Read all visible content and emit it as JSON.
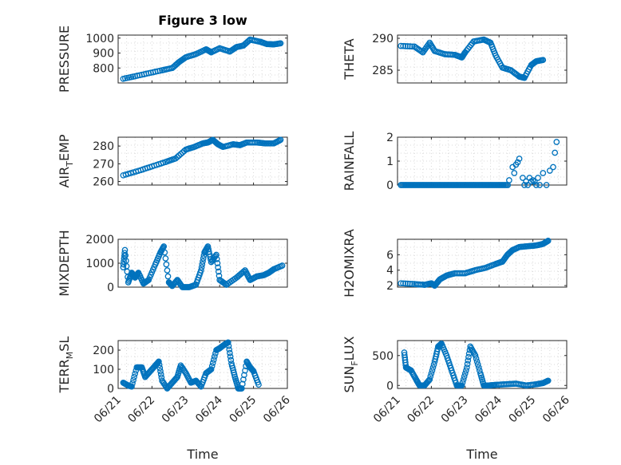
{
  "figure": {
    "title": "Figure 3 low",
    "xlabel": "Time",
    "marker_color": "#0072BD"
  },
  "chart_data": [
    {
      "type": "scatter",
      "name": "pressure-plot",
      "title": "Figure 3 low",
      "ylabel": "PRESSURE",
      "xlabel": "",
      "xlim": [
        0,
        5
      ],
      "xticks": [],
      "ylim": [
        700,
        1020
      ],
      "yticks": [
        800,
        900,
        1000
      ],
      "grid": true,
      "anchors": [
        [
          0.15,
          728
        ],
        [
          0.5,
          745
        ],
        [
          0.9,
          765
        ],
        [
          1.3,
          785
        ],
        [
          1.6,
          800
        ],
        [
          1.8,
          840
        ],
        [
          2.0,
          872
        ],
        [
          2.3,
          893
        ],
        [
          2.6,
          925
        ],
        [
          2.75,
          905
        ],
        [
          3.0,
          932
        ],
        [
          3.3,
          910
        ],
        [
          3.5,
          940
        ],
        [
          3.7,
          950
        ],
        [
          3.9,
          990
        ],
        [
          4.2,
          975
        ],
        [
          4.4,
          960
        ],
        [
          4.6,
          958
        ],
        [
          4.8,
          965
        ]
      ],
      "x": [
        0.15,
        0.4,
        0.8,
        1.2,
        1.6,
        2.0,
        2.4,
        2.8,
        3.2,
        3.6,
        4.0,
        4.4,
        4.75
      ],
      "y": [
        728,
        740,
        760,
        780,
        800,
        872,
        902,
        912,
        915,
        945,
        985,
        962,
        962
      ]
    },
    {
      "type": "scatter",
      "name": "theta-plot",
      "title": "",
      "ylabel": "THETA",
      "xlabel": "",
      "xlim": [
        0,
        5
      ],
      "xticks": [],
      "ylim": [
        283,
        290.5
      ],
      "yticks": [
        285,
        290
      ],
      "grid": true,
      "anchors": [
        [
          0.1,
          288.8
        ],
        [
          0.5,
          288.7
        ],
        [
          0.75,
          287.8
        ],
        [
          0.95,
          289.3
        ],
        [
          1.1,
          288.0
        ],
        [
          1.4,
          287.5
        ],
        [
          1.7,
          287.4
        ],
        [
          1.9,
          287.0
        ],
        [
          2.0,
          287.8
        ],
        [
          2.25,
          289.5
        ],
        [
          2.55,
          289.8
        ],
        [
          2.75,
          289.3
        ],
        [
          2.9,
          287.3
        ],
        [
          3.1,
          285.4
        ],
        [
          3.35,
          285.0
        ],
        [
          3.6,
          284.0
        ],
        [
          3.75,
          283.8
        ],
        [
          3.95,
          285.8
        ],
        [
          4.1,
          286.4
        ],
        [
          4.3,
          286.6
        ]
      ],
      "x": [
        0.1,
        0.5,
        1.0,
        1.5,
        2.0,
        2.5,
        3.0,
        3.5,
        4.0,
        4.3
      ],
      "y": [
        288.8,
        288.7,
        289.0,
        287.5,
        287.8,
        289.8,
        286.4,
        284.5,
        286.0,
        286.6
      ]
    },
    {
      "type": "scatter",
      "name": "air-temp-plot",
      "title": "",
      "ylabel": "AIR_TEMP",
      "ylabel_main": "AIR",
      "ylabel_sub": "T",
      "ylabel_rest": "EMP",
      "xlabel": "",
      "xlim": [
        0,
        5
      ],
      "xticks": [],
      "ylim": [
        258,
        285
      ],
      "yticks": [
        260,
        270,
        280
      ],
      "grid": true,
      "anchors": [
        [
          0.15,
          263.5
        ],
        [
          0.6,
          266
        ],
        [
          1.0,
          268.5
        ],
        [
          1.4,
          271
        ],
        [
          1.7,
          273
        ],
        [
          2.0,
          278
        ],
        [
          2.25,
          279.5
        ],
        [
          2.5,
          281.5
        ],
        [
          2.65,
          282
        ],
        [
          2.8,
          283.5
        ],
        [
          2.95,
          281
        ],
        [
          3.1,
          279.5
        ],
        [
          3.4,
          281
        ],
        [
          3.6,
          280.5
        ],
        [
          3.8,
          282
        ],
        [
          4.1,
          282
        ],
        [
          4.35,
          281.5
        ],
        [
          4.6,
          281.5
        ],
        [
          4.8,
          283.5
        ]
      ],
      "x": [
        0.15,
        0.6,
        1.0,
        1.5,
        2.0,
        2.5,
        3.0,
        3.5,
        4.0,
        4.5,
        4.8
      ],
      "y": [
        263.5,
        266,
        268.5,
        271.5,
        278,
        281.5,
        280.5,
        280.8,
        282,
        281.5,
        283.5
      ]
    },
    {
      "type": "scatter",
      "name": "rainfall-plot",
      "title": "",
      "ylabel": "RAINFALL",
      "xlabel": "",
      "xlim": [
        0,
        5
      ],
      "xticks": [],
      "ylim": [
        0,
        2
      ],
      "yticks": [
        0,
        1,
        2
      ],
      "grid": true,
      "zero_range": [
        0.1,
        3.3
      ],
      "extras": [
        [
          3.3,
          0.2
        ],
        [
          3.4,
          0.75
        ],
        [
          3.5,
          0.85
        ],
        [
          3.55,
          0.95
        ],
        [
          3.6,
          1.1
        ],
        [
          3.45,
          0.5
        ],
        [
          3.7,
          0.3
        ],
        [
          3.75,
          0.0
        ],
        [
          3.8,
          0.15
        ],
        [
          3.85,
          0.0
        ],
        [
          3.9,
          0.3
        ],
        [
          3.95,
          0.15
        ],
        [
          4.0,
          0.2
        ],
        [
          4.05,
          0.15
        ],
        [
          4.1,
          0.0
        ],
        [
          4.15,
          0.3
        ],
        [
          4.2,
          0.0
        ],
        [
          4.3,
          0.5
        ],
        [
          4.4,
          0.0
        ],
        [
          4.5,
          0.6
        ],
        [
          4.6,
          0.75
        ],
        [
          4.65,
          1.35
        ],
        [
          4.7,
          1.8
        ]
      ],
      "x": [
        0.1,
        1.0,
        2.0,
        3.0,
        3.6,
        4.7
      ],
      "y": [
        0,
        0,
        0,
        0,
        1.1,
        1.8
      ]
    },
    {
      "type": "scatter",
      "name": "mixdepth-plot",
      "title": "",
      "ylabel": "MIXDEPTH",
      "xlabel": "",
      "xlim": [
        0,
        5
      ],
      "xticks": [],
      "ylim": [
        0,
        2000
      ],
      "yticks": [
        0,
        1000,
        2000
      ],
      "grid": true,
      "anchors": [
        [
          0.15,
          830
        ],
        [
          0.2,
          1550
        ],
        [
          0.3,
          200
        ],
        [
          0.4,
          600
        ],
        [
          0.5,
          400
        ],
        [
          0.6,
          600
        ],
        [
          0.75,
          150
        ],
        [
          0.9,
          300
        ],
        [
          1.1,
          950
        ],
        [
          1.25,
          1450
        ],
        [
          1.35,
          1700
        ],
        [
          1.5,
          200
        ],
        [
          1.6,
          50
        ],
        [
          1.75,
          300
        ],
        [
          1.9,
          0
        ],
        [
          2.1,
          0
        ],
        [
          2.3,
          100
        ],
        [
          2.45,
          700
        ],
        [
          2.55,
          1450
        ],
        [
          2.65,
          1700
        ],
        [
          2.75,
          1050
        ],
        [
          2.9,
          1350
        ],
        [
          3.0,
          300
        ],
        [
          3.2,
          100
        ],
        [
          3.5,
          400
        ],
        [
          3.75,
          700
        ],
        [
          3.9,
          300
        ],
        [
          4.1,
          450
        ],
        [
          4.3,
          500
        ],
        [
          4.45,
          600
        ],
        [
          4.6,
          750
        ],
        [
          4.85,
          900
        ]
      ],
      "x": [
        0.2,
        0.5,
        1.35,
        1.9,
        2.65,
        3.2,
        3.75,
        4.85
      ],
      "y": [
        1550,
        400,
        1700,
        0,
        1700,
        100,
        700,
        900
      ]
    },
    {
      "type": "scatter",
      "name": "h2omixra-plot",
      "title": "",
      "ylabel": "H2OMIXRA",
      "xlabel": "",
      "xlim": [
        0,
        5
      ],
      "xticks": [],
      "ylim": [
        1.8,
        8.0
      ],
      "yticks": [
        2,
        4,
        6
      ],
      "grid": true,
      "anchors": [
        [
          0.1,
          2.3
        ],
        [
          0.5,
          2.2
        ],
        [
          0.8,
          2.1
        ],
        [
          1.0,
          2.3
        ],
        [
          1.1,
          2.0
        ],
        [
          1.25,
          2.8
        ],
        [
          1.45,
          3.3
        ],
        [
          1.7,
          3.6
        ],
        [
          2.0,
          3.6
        ],
        [
          2.3,
          4.0
        ],
        [
          2.6,
          4.3
        ],
        [
          2.9,
          4.8
        ],
        [
          3.1,
          5.1
        ],
        [
          3.25,
          6.0
        ],
        [
          3.4,
          6.6
        ],
        [
          3.6,
          7.0
        ],
        [
          3.85,
          7.1
        ],
        [
          4.1,
          7.2
        ],
        [
          4.3,
          7.4
        ],
        [
          4.45,
          7.8
        ]
      ],
      "x": [
        0.1,
        0.8,
        1.1,
        1.5,
        2.0,
        2.5,
        3.0,
        3.5,
        4.0,
        4.45
      ],
      "y": [
        2.3,
        2.1,
        2.0,
        3.3,
        3.6,
        4.2,
        5.0,
        6.8,
        7.2,
        7.8
      ]
    },
    {
      "type": "scatter",
      "name": "terr-msl-plot",
      "title": "",
      "ylabel": "TERR_MSL",
      "ylabel_main": "TERR",
      "ylabel_sub": "M",
      "ylabel_rest": "SL",
      "xlabel": "Time",
      "xlim": [
        0,
        5
      ],
      "xticks": [
        "06/21",
        "06/22",
        "06/23",
        "06/24",
        "06/25",
        "06/26"
      ],
      "ylim": [
        0,
        250
      ],
      "yticks": [
        0,
        100,
        200
      ],
      "grid": true,
      "anchors": [
        [
          0.15,
          30
        ],
        [
          0.3,
          15
        ],
        [
          0.4,
          10
        ],
        [
          0.55,
          110
        ],
        [
          0.7,
          110
        ],
        [
          0.8,
          60
        ],
        [
          0.95,
          90
        ],
        [
          1.1,
          120
        ],
        [
          1.2,
          140
        ],
        [
          1.3,
          40
        ],
        [
          1.45,
          0
        ],
        [
          1.6,
          30
        ],
        [
          1.75,
          60
        ],
        [
          1.85,
          120
        ],
        [
          2.0,
          80
        ],
        [
          2.15,
          30
        ],
        [
          2.3,
          40
        ],
        [
          2.45,
          10
        ],
        [
          2.6,
          80
        ],
        [
          2.75,
          100
        ],
        [
          2.9,
          200
        ],
        [
          3.0,
          210
        ],
        [
          3.15,
          230
        ],
        [
          3.25,
          240
        ],
        [
          3.35,
          130
        ],
        [
          3.45,
          60
        ],
        [
          3.55,
          0
        ],
        [
          3.65,
          0
        ],
        [
          3.8,
          140
        ],
        [
          3.9,
          110
        ],
        [
          4.0,
          90
        ],
        [
          4.15,
          20
        ]
      ],
      "x": [
        0.15,
        0.55,
        1.2,
        1.45,
        1.85,
        2.45,
        3.25,
        3.6,
        3.8,
        4.15
      ],
      "y": [
        30,
        110,
        140,
        0,
        120,
        10,
        240,
        0,
        140,
        20
      ]
    },
    {
      "type": "scatter",
      "name": "sun-flux-plot",
      "title": "",
      "ylabel": "SUN_FLUX",
      "ylabel_main": "SUN",
      "ylabel_sub": "F",
      "ylabel_rest": "LUX",
      "xlabel": "Time",
      "xlim": [
        0,
        5
      ],
      "xticks": [
        "06/21",
        "06/22",
        "06/23",
        "06/24",
        "06/25",
        "06/26"
      ],
      "ylim": [
        -50,
        750
      ],
      "yticks": [
        0,
        500
      ],
      "grid": true,
      "anchors": [
        [
          0.2,
          550
        ],
        [
          0.25,
          300
        ],
        [
          0.4,
          250
        ],
        [
          0.55,
          100
        ],
        [
          0.65,
          0
        ],
        [
          0.8,
          0
        ],
        [
          0.95,
          100
        ],
        [
          1.1,
          400
        ],
        [
          1.2,
          650
        ],
        [
          1.3,
          700
        ],
        [
          1.45,
          500
        ],
        [
          1.6,
          250
        ],
        [
          1.75,
          0
        ],
        [
          1.9,
          0
        ],
        [
          2.05,
          300
        ],
        [
          2.15,
          650
        ],
        [
          2.3,
          500
        ],
        [
          2.45,
          200
        ],
        [
          2.55,
          0
        ],
        [
          2.7,
          0
        ],
        [
          2.9,
          10
        ],
        [
          3.2,
          20
        ],
        [
          3.5,
          30
        ],
        [
          3.8,
          0
        ],
        [
          4.1,
          20
        ],
        [
          4.3,
          40
        ],
        [
          4.45,
          80
        ]
      ],
      "x": [
        0.2,
        0.65,
        1.3,
        1.75,
        2.15,
        2.55,
        3.5,
        4.45
      ],
      "y": [
        550,
        0,
        700,
        0,
        650,
        0,
        30,
        80
      ]
    }
  ]
}
